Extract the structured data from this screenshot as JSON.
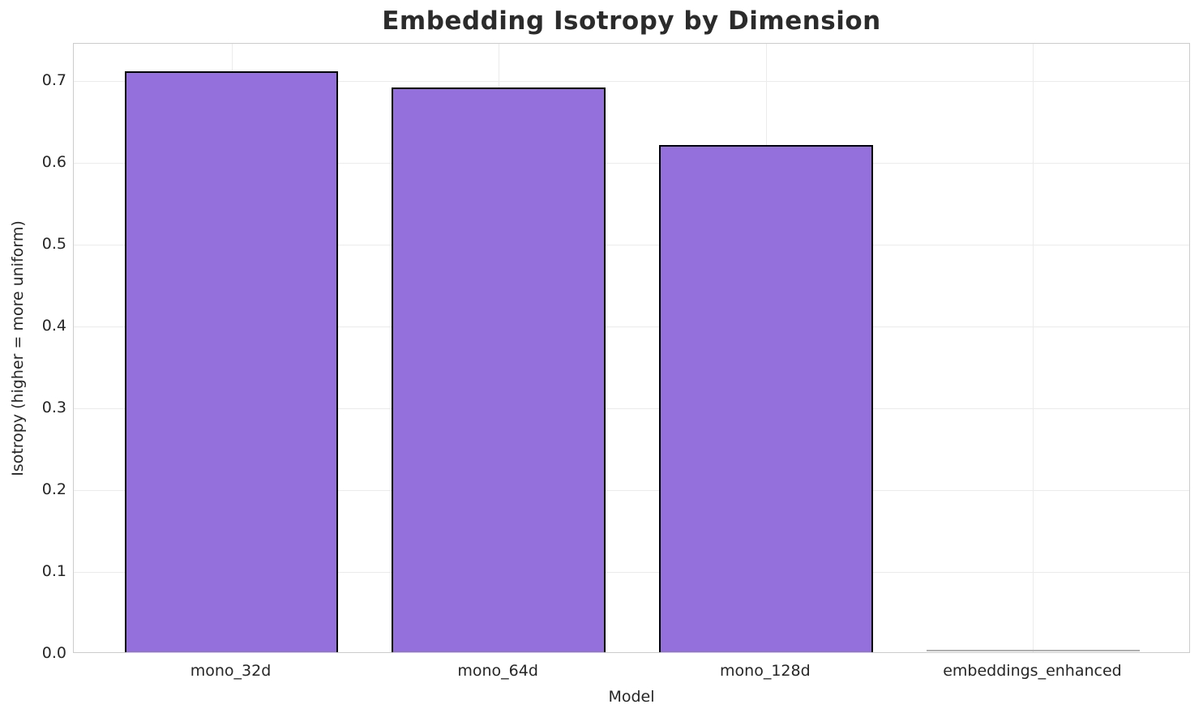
{
  "chart_data": {
    "type": "bar",
    "title": "Embedding Isotropy by Dimension",
    "xlabel": "Model",
    "ylabel": "Isotropy (higher = more uniform)",
    "categories": [
      "mono_32d",
      "mono_64d",
      "mono_128d",
      "embeddings_enhanced"
    ],
    "values": [
      0.71,
      0.69,
      0.62,
      0.0
    ],
    "ylim": [
      0,
      0.7455
    ],
    "yticks": [
      0.0,
      0.1,
      0.2,
      0.3,
      0.4,
      0.5,
      0.6,
      0.7
    ],
    "grid": true,
    "legend": null,
    "colors": {
      "bar_fill": "#9370DB",
      "bar_edge": "#000000",
      "zero_bar_line": "#b0b0b0",
      "grid": "#ebebeb",
      "spine": "#cccccc",
      "text": "#262626",
      "title_text": "#2b2b2b",
      "background": "#ffffff"
    }
  }
}
